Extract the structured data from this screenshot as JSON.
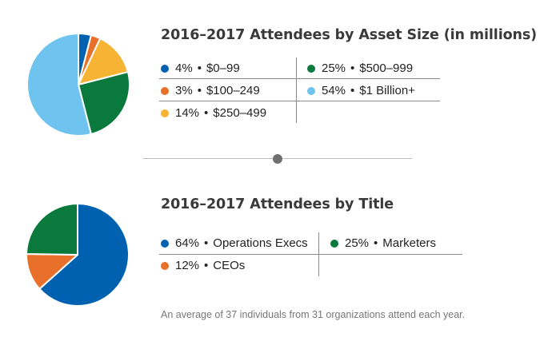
{
  "chart_data": [
    {
      "type": "pie",
      "title": "2016–2017 Attendees by Asset Size (in millions)",
      "slices": [
        {
          "pct": "4%",
          "label": "$0–99",
          "value": 4,
          "color": "#0061b0"
        },
        {
          "pct": "3%",
          "label": "$100–249",
          "value": 3,
          "color": "#e8702a"
        },
        {
          "pct": "14%",
          "label": "$250–499",
          "value": 14,
          "color": "#f7b334"
        },
        {
          "pct": "25%",
          "label": "$500–999",
          "value": 25,
          "color": "#0a7a3c"
        },
        {
          "pct": "54%",
          "label": "$1 Billion+",
          "value": 54,
          "color": "#6ec4ee"
        }
      ],
      "legend_placement": "right"
    },
    {
      "type": "pie",
      "title": "2016–2017 Attendees by Title",
      "slices": [
        {
          "pct": "64%",
          "label": "Operations Execs",
          "value": 64,
          "color": "#0061b0"
        },
        {
          "pct": "12%",
          "label": "CEOs",
          "value": 12,
          "color": "#e8702a"
        },
        {
          "pct": "25%",
          "label": "Marketers",
          "value": 25,
          "color": "#0a7a3c"
        }
      ],
      "legend_placement": "right"
    }
  ],
  "footnote": "An average of 37 individuals from 31 organizations attend each year.",
  "separator": "•"
}
